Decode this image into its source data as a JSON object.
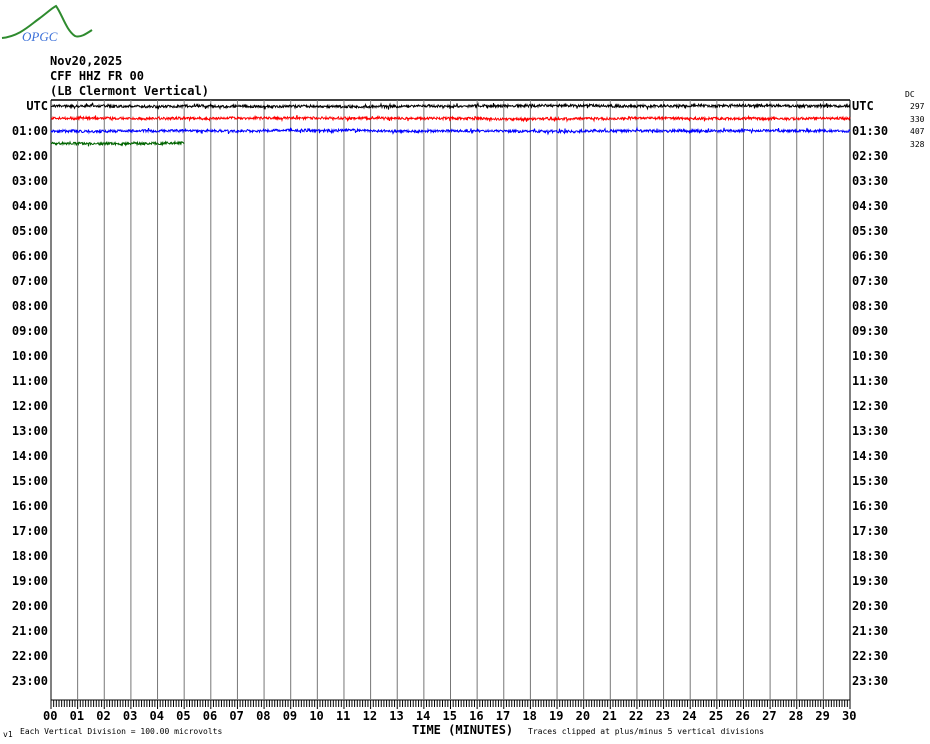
{
  "logo": {
    "text": "OPGC"
  },
  "header": {
    "date": "Nov20,2025",
    "station": "CFF HHZ FR 00",
    "location": "(LB Clermont Vertical)"
  },
  "chart_data": {
    "type": "line",
    "title": "",
    "xlabel": "TIME (MINUTES)",
    "xlim": [
      0,
      30
    ],
    "x_ticks": [
      "00",
      "01",
      "02",
      "03",
      "04",
      "05",
      "06",
      "07",
      "08",
      "09",
      "10",
      "11",
      "12",
      "13",
      "14",
      "15",
      "16",
      "17",
      "18",
      "19",
      "20",
      "21",
      "22",
      "23",
      "24",
      "25",
      "26",
      "27",
      "28",
      "29",
      "30"
    ],
    "left_labels": [
      "UTC",
      "01:00",
      "02:00",
      "03:00",
      "04:00",
      "05:00",
      "06:00",
      "07:00",
      "08:00",
      "09:00",
      "10:00",
      "11:00",
      "12:00",
      "13:00",
      "14:00",
      "15:00",
      "16:00",
      "17:00",
      "18:00",
      "19:00",
      "20:00",
      "21:00",
      "22:00",
      "23:00"
    ],
    "right_labels": [
      "UTC",
      "01:30",
      "02:30",
      "03:30",
      "04:30",
      "05:30",
      "06:30",
      "07:30",
      "08:30",
      "09:30",
      "10:30",
      "11:30",
      "12:30",
      "13:30",
      "14:30",
      "15:30",
      "16:30",
      "17:30",
      "18:30",
      "19:30",
      "20:30",
      "21:30",
      "22:30",
      "23:30"
    ],
    "rows_per_day": 48,
    "grid": "vertical lines every minute",
    "dc_label": "DC",
    "traces": [
      {
        "row": "00:00",
        "color": "#000000",
        "end_minute": 30,
        "dc": "297"
      },
      {
        "row": "00:30",
        "color": "#ff0000",
        "end_minute": 30,
        "dc": "330"
      },
      {
        "row": "01:00",
        "color": "#0000ff",
        "end_minute": 30,
        "dc": "407"
      },
      {
        "row": "01:30",
        "color": "#006400",
        "end_minute": 5,
        "dc": "328"
      }
    ]
  },
  "footer": {
    "version": "v1",
    "scale": "Each Vertical Division =  100.00 microvolts",
    "clip": "Traces clipped at plus/minus 5 vertical divisions"
  }
}
